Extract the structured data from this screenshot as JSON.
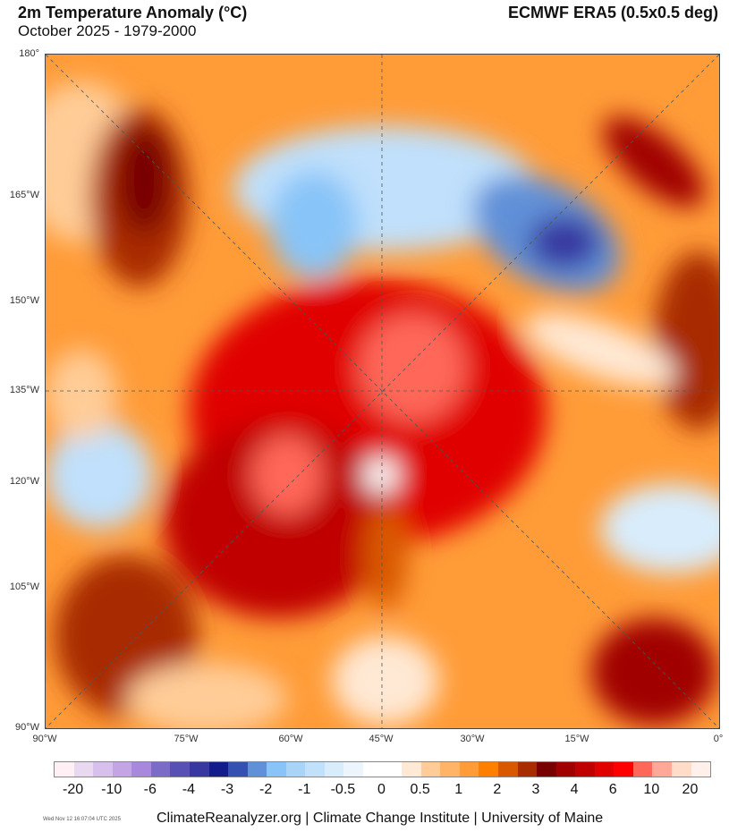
{
  "header": {
    "title": "2m Temperature Anomaly (°C)",
    "subtitle": "October 2025 - 1979-2000",
    "source": "ECMWF ERA5 (0.5x0.5 deg)"
  },
  "axes": {
    "left_labels": [
      "180°",
      "165°W",
      "150°W",
      "135°W",
      "120°W",
      "105°W",
      "90°W"
    ],
    "bottom_labels": [
      "90°W",
      "75°W",
      "60°W",
      "45°W",
      "30°W",
      "15°W",
      "0°"
    ]
  },
  "colorbar": {
    "labels": [
      "-20",
      "-10",
      "-6",
      "-4",
      "-3",
      "-2",
      "-1",
      "-0.5",
      "0",
      "0.5",
      "1",
      "2",
      "3",
      "4",
      "6",
      "10",
      "20"
    ],
    "colors": [
      "#fff0f5",
      "#e8d8f0",
      "#d8c0ec",
      "#c4a4e4",
      "#a888dc",
      "#7c6cc8",
      "#5850b4",
      "#3838a0",
      "#141c8c",
      "#3450b0",
      "#6090d8",
      "#88c4f8",
      "#a8d4f8",
      "#c0e0fc",
      "#d8ecfc",
      "#ecf4fc",
      "#ffffff",
      "#ffffff",
      "#ffe8d4",
      "#ffcc98",
      "#ffb468",
      "#ff9c38",
      "#ff8000",
      "#d85800",
      "#a82c00",
      "#780000",
      "#a00000",
      "#c00000",
      "#e00000",
      "#ff0000",
      "#ff6858",
      "#ffa898",
      "#ffdcc8",
      "#fff0ec"
    ]
  },
  "footer": {
    "timestamp": "Wed Nov 12 16:07:04 UTC 2025",
    "credit": "ClimateReanalyzer.org | Climate Change Institute | University of Maine"
  }
}
